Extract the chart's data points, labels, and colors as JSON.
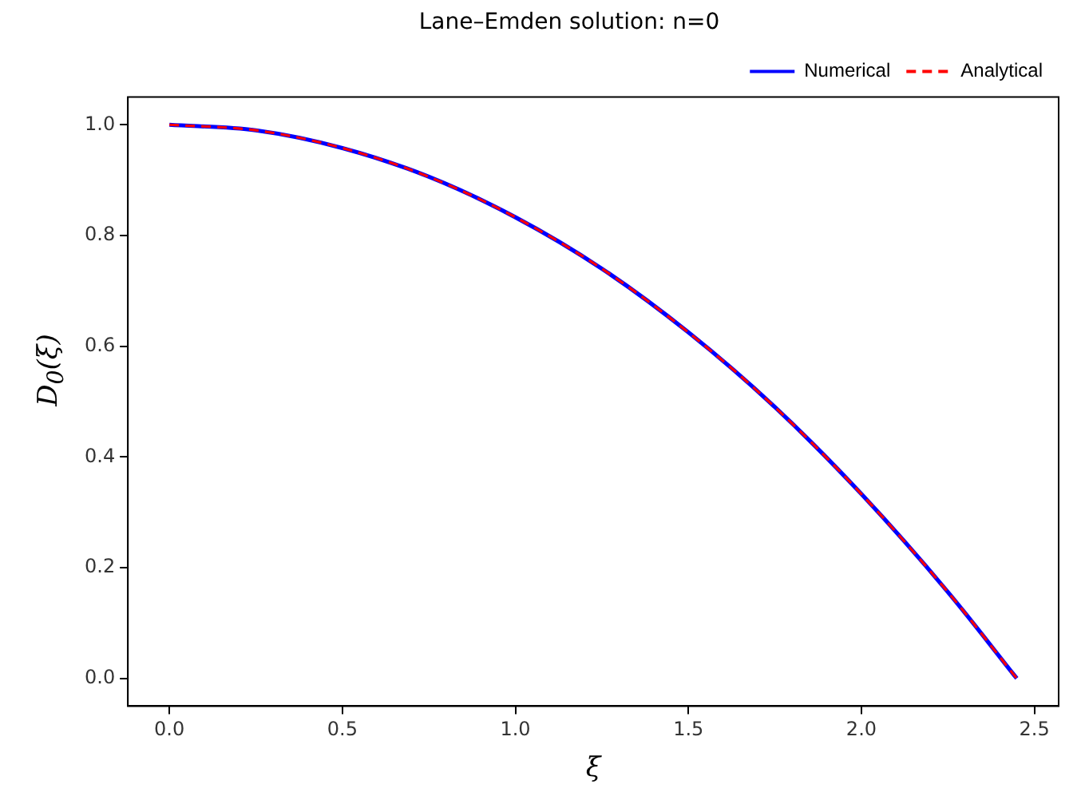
{
  "chart_data": {
    "type": "line",
    "title": "Lane–Emden solution: n=0",
    "xlabel": "ξ",
    "ylabel": "D$_{0}$(ξ)",
    "x": [
      0,
      0.25,
      0.5,
      0.75,
      1.0,
      1.25,
      1.5,
      1.75,
      2.0,
      2.25,
      2.449
    ],
    "series": [
      {
        "name": "Numerical",
        "color": "#0000ff",
        "line_style": "solid",
        "values": [
          1.0,
          0.99,
          0.958,
          0.906,
          0.833,
          0.74,
          0.625,
          0.49,
          0.333,
          0.156,
          0.0
        ]
      },
      {
        "name": "Analytical",
        "color": "#ff0000",
        "line_style": "dashed",
        "values": [
          1.0,
          0.99,
          0.958,
          0.906,
          0.833,
          0.74,
          0.625,
          0.49,
          0.333,
          0.156,
          0.0
        ]
      }
    ],
    "xlim": [
      -0.12,
      2.57
    ],
    "xticks": [
      {
        "value": 0,
        "label": "0.0"
      },
      {
        "value": 0.5,
        "label": "0.5"
      },
      {
        "value": 1,
        "label": "1.0"
      },
      {
        "value": 1.5,
        "label": "1.5"
      },
      {
        "value": 2,
        "label": "2.0"
      },
      {
        "value": 2.5,
        "label": "2.5"
      }
    ],
    "ylim": [
      -0.05,
      1.05
    ],
    "yticks": [
      {
        "value": 0,
        "label": "0.0"
      },
      {
        "value": 0.2,
        "label": "0.2"
      },
      {
        "value": 0.4,
        "label": "0.4"
      },
      {
        "value": 0.6,
        "label": "0.6"
      },
      {
        "value": 0.8,
        "label": "0.8"
      },
      {
        "value": 1,
        "label": "1.0"
      }
    ],
    "grid": false,
    "legend": "top right",
    "marker": "none"
  }
}
